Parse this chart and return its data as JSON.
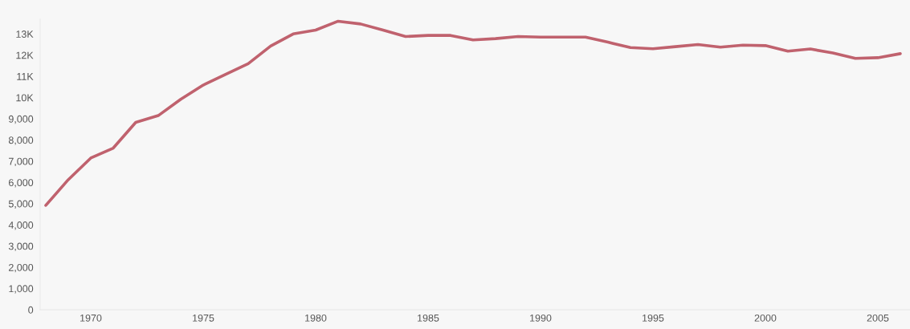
{
  "chart_data": {
    "type": "line",
    "x": [
      1968,
      1969,
      1970,
      1971,
      1972,
      1973,
      1974,
      1975,
      1976,
      1977,
      1978,
      1979,
      1980,
      1981,
      1982,
      1983,
      1984,
      1985,
      1986,
      1987,
      1988,
      1989,
      1990,
      1991,
      1992,
      1993,
      1994,
      1995,
      1996,
      1997,
      1998,
      1999,
      2000,
      2001,
      2002,
      2003,
      2004,
      2005,
      2006
    ],
    "series": [
      {
        "color": "#c0626e",
        "values": [
          4920,
          6130,
          7150,
          7620,
          8830,
          9150,
          9920,
          10590,
          11100,
          11600,
          12430,
          13000,
          13180,
          13600,
          13470,
          13180,
          12880,
          12930,
          12930,
          12720,
          12780,
          12880,
          12850,
          12850,
          12850,
          12610,
          12360,
          12300,
          12400,
          12500,
          12380,
          12470,
          12450,
          12190,
          12290,
          12100,
          11850,
          11880,
          12070
        ]
      }
    ],
    "xlim": [
      1967.75,
      2006.43
    ],
    "xticks": [
      1970,
      1975,
      1980,
      1985,
      1990,
      1995,
      2000,
      2005
    ],
    "ylim": [
      0,
      13700
    ],
    "yticks": [
      0,
      {
        "value": 1000,
        "label": "1,000"
      },
      {
        "value": 2000,
        "label": "2,000"
      },
      {
        "value": 3000,
        "label": "3,000"
      },
      {
        "value": 4000,
        "label": "4,000"
      },
      {
        "value": 5000,
        "label": "5,000"
      },
      {
        "value": 6000,
        "label": "6,000"
      },
      {
        "value": 7000,
        "label": "7,000"
      },
      {
        "value": 8000,
        "label": "8,000"
      },
      {
        "value": 9000,
        "label": "9,000"
      },
      {
        "value": 10000,
        "label": "10K"
      },
      {
        "value": 11000,
        "label": "11K"
      },
      {
        "value": 12000,
        "label": "12K"
      },
      {
        "value": 13000,
        "label": "13K"
      }
    ],
    "grid": false,
    "marker": "none",
    "line_style": "solid"
  }
}
